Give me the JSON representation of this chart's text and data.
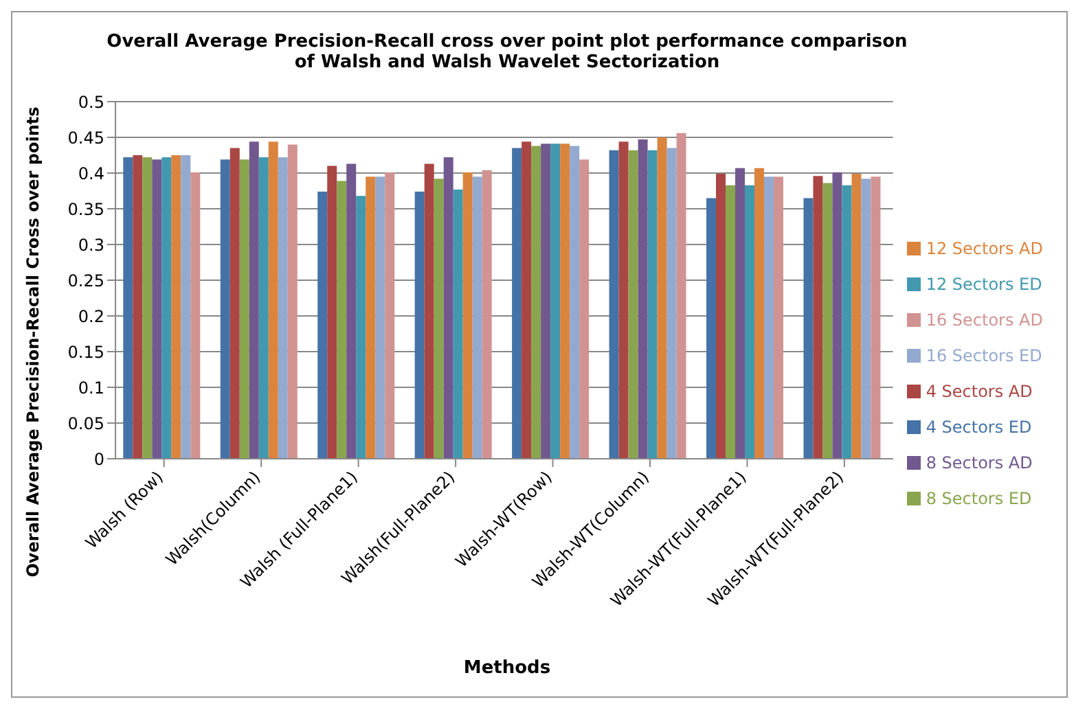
{
  "chart_data": {
    "type": "bar",
    "title": "Overall Average Precision-Recall  cross over point plot performance comparison of Walsh and Walsh Wavelet Sectorization",
    "xlabel": "Methods",
    "ylabel": "Overall Average Precision-Recall  Cross over points",
    "categories": [
      "Walsh (Row)",
      "Walsh(Column)",
      "Walsh (Full-Plane1)",
      "Walsh(Full-Plane2)",
      "Walsh-WT(Row)",
      "Walsh-WT(Column)",
      "Walsh-WT(Full-Plane1)",
      "Walsh-WT(Full-Plane2)"
    ],
    "series": [
      {
        "name": "4 Sectors ED",
        "color": "#4572a7",
        "values": [
          0.422,
          0.419,
          0.374,
          0.374,
          0.435,
          0.432,
          0.365,
          0.365
        ]
      },
      {
        "name": "4 Sectors AD",
        "color": "#aa4643",
        "values": [
          0.425,
          0.435,
          0.41,
          0.413,
          0.444,
          0.444,
          0.399,
          0.396
        ]
      },
      {
        "name": "8 Sectors ED",
        "color": "#89a54e",
        "values": [
          0.422,
          0.419,
          0.389,
          0.392,
          0.438,
          0.432,
          0.383,
          0.386
        ]
      },
      {
        "name": "8 Sectors AD",
        "color": "#71588f",
        "values": [
          0.419,
          0.444,
          0.413,
          0.422,
          0.441,
          0.447,
          0.407,
          0.401
        ]
      },
      {
        "name": "12 Sectors ED",
        "color": "#4198af",
        "values": [
          0.422,
          0.422,
          0.368,
          0.377,
          0.441,
          0.432,
          0.383,
          0.383
        ]
      },
      {
        "name": "12 Sectors AD",
        "color": "#db843d",
        "values": [
          0.425,
          0.444,
          0.395,
          0.401,
          0.441,
          0.45,
          0.407,
          0.399
        ]
      },
      {
        "name": "16 Sectors ED",
        "color": "#93a9cf",
        "values": [
          0.425,
          0.422,
          0.395,
          0.395,
          0.438,
          0.435,
          0.395,
          0.392
        ]
      },
      {
        "name": "16 Sectors AD",
        "color": "#d19392",
        "values": [
          0.401,
          0.44,
          0.401,
          0.404,
          0.419,
          0.456,
          0.395,
          0.395
        ]
      }
    ],
    "ylim": [
      0,
      0.5
    ],
    "yticks": [
      0,
      0.05,
      0.1,
      0.15,
      0.2,
      0.25,
      0.3,
      0.35,
      0.4,
      0.45,
      0.5
    ],
    "grid": "y",
    "legend": "right"
  }
}
